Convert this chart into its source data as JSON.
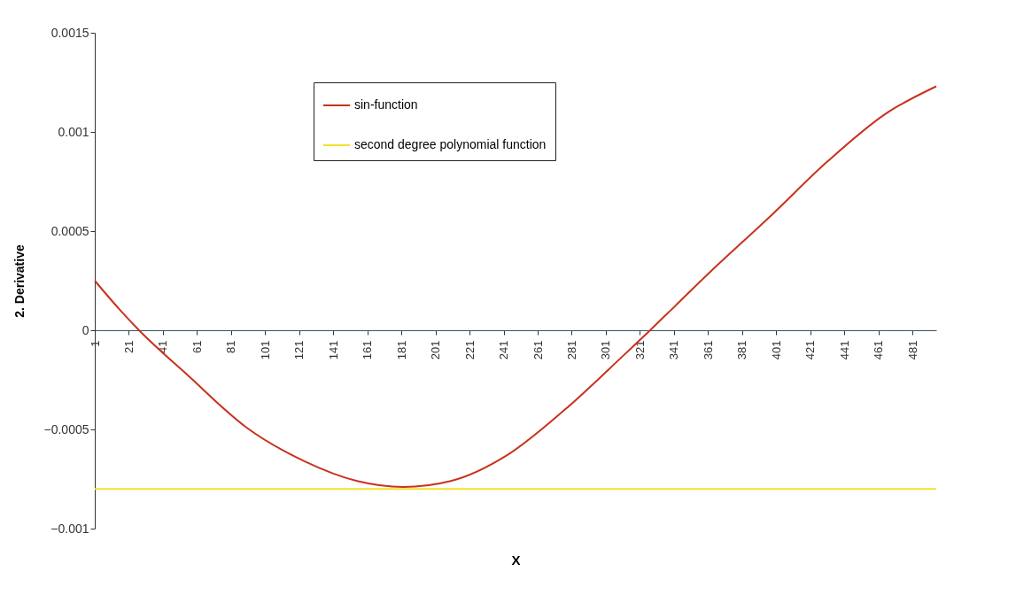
{
  "chart_data": {
    "type": "line",
    "xlabel": "X",
    "ylabel": "2. Derivative",
    "xlim": [
      1,
      495
    ],
    "xticks": [
      1,
      21,
      41,
      61,
      81,
      101,
      121,
      141,
      161,
      181,
      201,
      221,
      241,
      261,
      281,
      301,
      321,
      341,
      361,
      381,
      401,
      421,
      441,
      461,
      481
    ],
    "ylim": [
      -0.001,
      0.0015
    ],
    "yticks": [
      -0.001,
      -0.0005,
      0,
      0.0005,
      0.001,
      0.0015
    ],
    "grid": false,
    "legend": "top",
    "marker": "none",
    "line_style": "solid",
    "series": [
      {
        "name": "sin-function",
        "color": "#c8321e",
        "x": [
          1,
          15,
          27,
          56,
          90,
          124,
          155,
          182,
          210,
          243,
          277,
          311,
          327,
          339,
          363,
          397,
          431,
          465,
          495
        ],
        "values": [
          0.00025,
          0.00011,
          0,
          -0.00023,
          -0.00049,
          -0.00066,
          -0.00076,
          -0.00079,
          -0.00076,
          -0.00063,
          -0.0004,
          -0.00013,
          0,
          0.0001,
          0.0003,
          0.00057,
          0.00085,
          0.00109,
          0.00123
        ]
      },
      {
        "name": "second degree polynomial function",
        "color": "#f2e22c",
        "x": [
          1,
          495
        ],
        "values": [
          -0.0008,
          -0.0008
        ]
      }
    ]
  }
}
